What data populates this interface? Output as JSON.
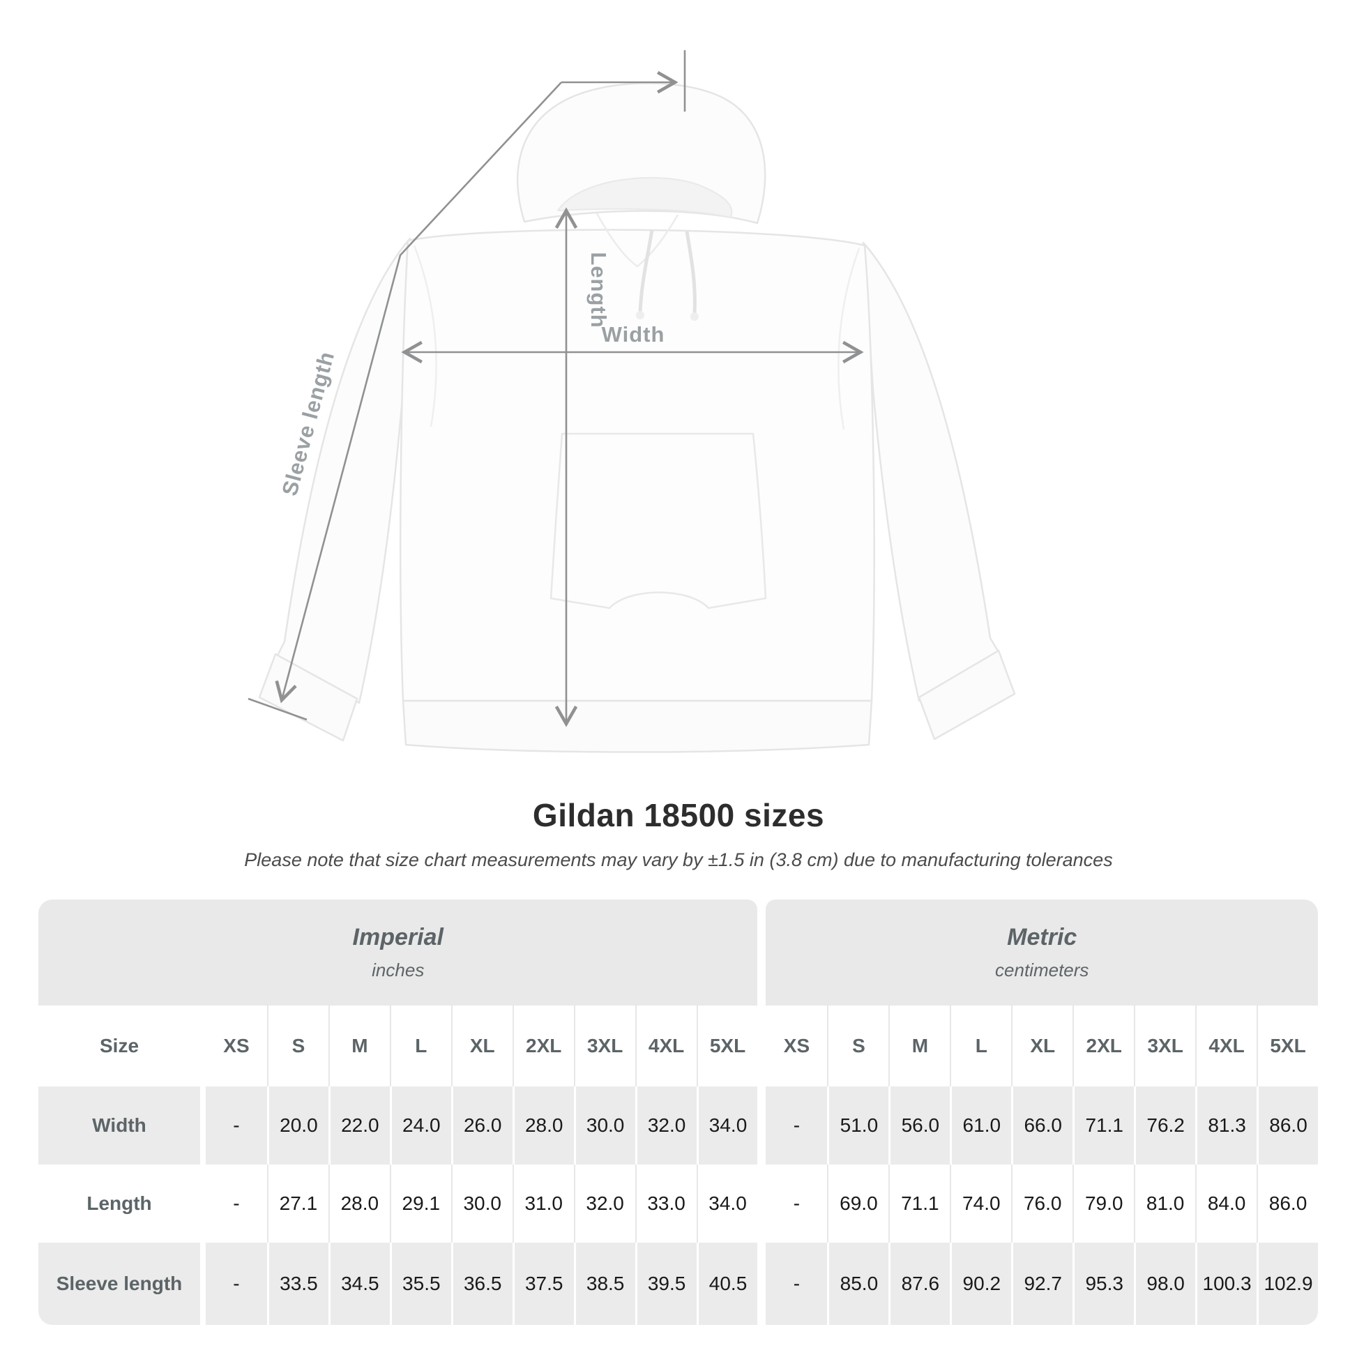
{
  "diagram": {
    "labels": {
      "length": "Length",
      "width": "Width",
      "sleeve": "Sleeve length"
    },
    "line_color": "#8f9192",
    "label_color": "#9aa0a3"
  },
  "heading": {
    "title": "Gildan 18500 sizes",
    "subtitle": "Please note that size chart measurements may vary by ±1.5 in (3.8 cm) due to manufacturing tolerances"
  },
  "chart_data": {
    "type": "table",
    "title": "Gildan 18500 sizes",
    "size_label": "Size",
    "groups": [
      {
        "name": "Imperial",
        "unit": "inches"
      },
      {
        "name": "Metric",
        "unit": "centimeters"
      }
    ],
    "sizes": [
      "XS",
      "S",
      "M",
      "L",
      "XL",
      "2XL",
      "3XL",
      "4XL",
      "5XL"
    ],
    "rows": [
      {
        "label": "Width",
        "imperial": [
          "-",
          "20.0",
          "22.0",
          "24.0",
          "26.0",
          "28.0",
          "30.0",
          "32.0",
          "34.0"
        ],
        "metric": [
          "-",
          "51.0",
          "56.0",
          "61.0",
          "66.0",
          "71.1",
          "76.2",
          "81.3",
          "86.0"
        ]
      },
      {
        "label": "Length",
        "imperial": [
          "-",
          "27.1",
          "28.0",
          "29.1",
          "30.0",
          "31.0",
          "32.0",
          "33.0",
          "34.0"
        ],
        "metric": [
          "-",
          "69.0",
          "71.1",
          "74.0",
          "76.0",
          "79.0",
          "81.0",
          "84.0",
          "86.0"
        ]
      },
      {
        "label": "Sleeve length",
        "imperial": [
          "-",
          "33.5",
          "34.5",
          "35.5",
          "36.5",
          "37.5",
          "38.5",
          "39.5",
          "40.5"
        ],
        "metric": [
          "-",
          "85.0",
          "87.6",
          "90.2",
          "92.7",
          "95.3",
          "98.0",
          "100.3",
          "102.9"
        ]
      }
    ]
  },
  "colors": {
    "band_background": "#e9e9e9",
    "row_shade": "#ebebeb",
    "measure_line": "#8f9192",
    "measure_label": "#9aa0a3",
    "header_text": "#5c6467",
    "value_text": "#191919"
  }
}
